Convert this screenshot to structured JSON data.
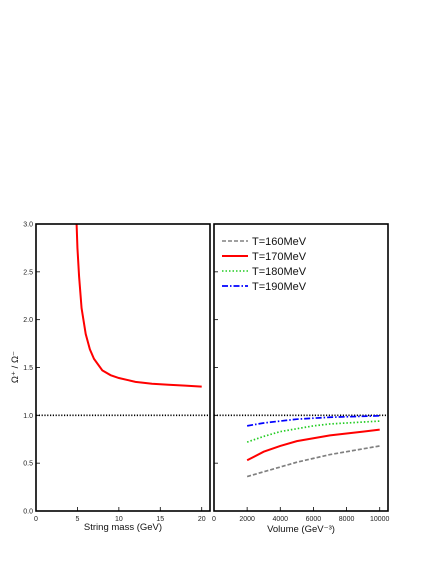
{
  "chart_data": [
    {
      "type": "line",
      "panel": "left",
      "xlabel": "String mass (GeV)",
      "ylabel": "Ω⁺ / Ω⁻",
      "xlim": [
        0,
        21
      ],
      "ylim": [
        0.0,
        3.0
      ],
      "xticks": [
        "0",
        "5",
        "10",
        "15",
        "20"
      ],
      "yticks": [
        "0.0",
        "0.5",
        "1.0",
        "1.5",
        "2.0",
        "2.5",
        "3.0"
      ],
      "reference_line": {
        "y": 1.0,
        "style": "dotted",
        "color": "#000000"
      },
      "series": [
        {
          "color": "#ff0000",
          "style": "solid",
          "x": [
            4.9,
            5.0,
            5.2,
            5.5,
            6.0,
            6.5,
            7.0,
            8.0,
            9.0,
            10.0,
            12.0,
            14.0,
            16.0,
            18.0,
            20.0
          ],
          "y": [
            3.0,
            2.75,
            2.45,
            2.12,
            1.85,
            1.69,
            1.59,
            1.47,
            1.42,
            1.39,
            1.35,
            1.33,
            1.32,
            1.31,
            1.3
          ]
        }
      ]
    },
    {
      "type": "line",
      "panel": "right",
      "xlabel": "Volume (GeV⁻³)",
      "ylabel": "",
      "xlim": [
        0,
        10500
      ],
      "ylim": [
        0.0,
        3.0
      ],
      "xticks": [
        "0",
        "2000",
        "4000",
        "6000",
        "8000",
        "10000"
      ],
      "reference_line": {
        "y": 1.0,
        "style": "dotted",
        "color": "#000000"
      },
      "legend": "top-left",
      "series": [
        {
          "name": "T=160MeV",
          "color": "#808080",
          "style": "dashed",
          "x": [
            2000,
            3000,
            4000,
            5000,
            6000,
            7000,
            8000,
            9000,
            10000
          ],
          "y": [
            0.36,
            0.41,
            0.46,
            0.51,
            0.55,
            0.59,
            0.62,
            0.65,
            0.68
          ]
        },
        {
          "name": "T=170MeV",
          "color": "#ff0000",
          "style": "solid",
          "x": [
            2000,
            3000,
            4000,
            5000,
            6000,
            7000,
            8000,
            9000,
            10000
          ],
          "y": [
            0.53,
            0.62,
            0.68,
            0.73,
            0.76,
            0.79,
            0.81,
            0.83,
            0.85
          ]
        },
        {
          "name": "T=180MeV",
          "color": "#22cc22",
          "style": "dotted",
          "x": [
            2000,
            3000,
            4000,
            5000,
            6000,
            7000,
            8000,
            9000,
            10000
          ],
          "y": [
            0.72,
            0.78,
            0.83,
            0.86,
            0.89,
            0.91,
            0.92,
            0.93,
            0.94
          ]
        },
        {
          "name": "T=190MeV",
          "color": "#0000ff",
          "style": "dashdot",
          "x": [
            2000,
            3000,
            4000,
            5000,
            6000,
            7000,
            8000,
            9000,
            10000
          ],
          "y": [
            0.89,
            0.92,
            0.94,
            0.96,
            0.97,
            0.98,
            0.985,
            0.99,
            0.995
          ]
        }
      ]
    }
  ]
}
